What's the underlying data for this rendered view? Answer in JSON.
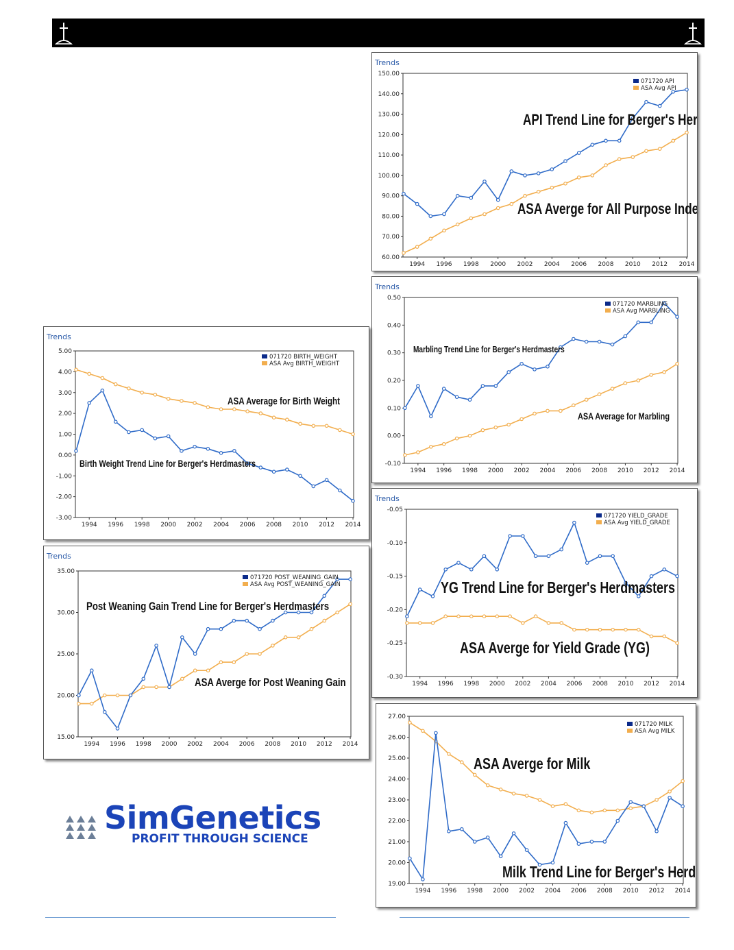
{
  "chart_data": [
    {
      "id": "api",
      "type": "line",
      "title": "Trends",
      "x": [
        1993,
        1994,
        1995,
        1996,
        1997,
        1998,
        1999,
        2000,
        2001,
        2002,
        2003,
        2004,
        2005,
        2006,
        2007,
        2008,
        2009,
        2010,
        2011,
        2012,
        2013,
        2014
      ],
      "xticks": [
        "1994",
        "1996",
        "1998",
        "2000",
        "2002",
        "2004",
        "2006",
        "2008",
        "2010",
        "2012",
        "2014"
      ],
      "ylim": [
        60,
        150
      ],
      "yticks": [
        "60.00",
        "70.00",
        "80.00",
        "90.00",
        "100.00",
        "110.00",
        "120.00",
        "130.00",
        "140.00",
        "150.00"
      ],
      "series": [
        {
          "name": "071720 API",
          "color": "#2f6bc8",
          "values": [
            91,
            86,
            80,
            81,
            90,
            89,
            97,
            88,
            102,
            100,
            101,
            103,
            107,
            111,
            115,
            117,
            117,
            128,
            136,
            134,
            141,
            142
          ]
        },
        {
          "name": "ASA Avg API",
          "color": "#f2ae4e",
          "values": [
            62,
            65,
            69,
            73,
            76,
            79,
            81,
            84,
            86,
            90,
            92,
            94,
            96,
            99,
            100,
            105,
            108,
            109,
            112,
            113,
            117,
            121
          ]
        }
      ],
      "annotations": [
        "API Trend Line for Berger's Herdmasters",
        "ASA Averge for All Purpose Index (API)"
      ]
    },
    {
      "id": "birth_weight",
      "type": "line",
      "title": "Trends",
      "x": [
        1993,
        1994,
        1995,
        1996,
        1997,
        1998,
        1999,
        2000,
        2001,
        2002,
        2003,
        2004,
        2005,
        2006,
        2007,
        2008,
        2009,
        2010,
        2011,
        2012,
        2013,
        2014
      ],
      "xticks": [
        "1994",
        "1996",
        "1998",
        "2000",
        "2002",
        "2004",
        "2006",
        "2008",
        "2010",
        "2012",
        "2014"
      ],
      "ylim": [
        -3,
        5
      ],
      "yticks": [
        "-3.00",
        "-2.00",
        "-1.00",
        "0.00",
        "1.00",
        "2.00",
        "3.00",
        "4.00",
        "5.00"
      ],
      "series": [
        {
          "name": "071720 BIRTH_WEIGHT",
          "color": "#2f6bc8",
          "values": [
            0.2,
            2.5,
            3.1,
            1.6,
            1.1,
            1.2,
            0.8,
            0.9,
            0.2,
            0.4,
            0.3,
            0.1,
            0.2,
            -0.4,
            -0.6,
            -0.8,
            -0.7,
            -1.0,
            -1.5,
            -1.2,
            -1.7,
            -2.2
          ]
        },
        {
          "name": "ASA Avg BIRTH_WEIGHT",
          "color": "#f2ae4e",
          "values": [
            4.1,
            3.9,
            3.7,
            3.4,
            3.2,
            3.0,
            2.9,
            2.7,
            2.6,
            2.5,
            2.3,
            2.2,
            2.2,
            2.1,
            2.0,
            1.8,
            1.7,
            1.5,
            1.4,
            1.4,
            1.2,
            1.0
          ]
        }
      ],
      "annotations": [
        "ASA Average for Birth Weight",
        "Birth Weight Trend Line for Berger's Herdmasters"
      ]
    },
    {
      "id": "marbling",
      "type": "line",
      "title": "Trends",
      "x": [
        1993,
        1994,
        1995,
        1996,
        1997,
        1998,
        1999,
        2000,
        2001,
        2002,
        2003,
        2004,
        2005,
        2006,
        2007,
        2008,
        2009,
        2010,
        2011,
        2012,
        2013,
        2014
      ],
      "xticks": [
        "1994",
        "1996",
        "1998",
        "2000",
        "2002",
        "2004",
        "2006",
        "2008",
        "2010",
        "2012",
        "2014"
      ],
      "ylim": [
        -0.1,
        0.5
      ],
      "yticks": [
        "-0.10",
        "0.00",
        "0.10",
        "0.20",
        "0.30",
        "0.40",
        "0.50"
      ],
      "series": [
        {
          "name": "071720 MARBLING",
          "color": "#2f6bc8",
          "values": [
            0.1,
            0.18,
            0.07,
            0.17,
            0.14,
            0.13,
            0.18,
            0.18,
            0.23,
            0.26,
            0.24,
            0.25,
            0.32,
            0.35,
            0.34,
            0.34,
            0.33,
            0.36,
            0.41,
            0.41,
            0.48,
            0.43
          ]
        },
        {
          "name": "ASA Avg MARBLING",
          "color": "#f2ae4e",
          "values": [
            -0.07,
            -0.06,
            -0.04,
            -0.03,
            -0.01,
            0.0,
            0.02,
            0.03,
            0.04,
            0.06,
            0.08,
            0.09,
            0.09,
            0.11,
            0.13,
            0.15,
            0.17,
            0.19,
            0.2,
            0.22,
            0.23,
            0.26
          ]
        }
      ],
      "annotations": [
        "Marbling Trend Line for Berger's Herdmasters",
        "ASA Average for Marbling"
      ]
    },
    {
      "id": "post_weaning_gain",
      "type": "line",
      "title": "Trends",
      "x": [
        1993,
        1994,
        1995,
        1996,
        1997,
        1998,
        1999,
        2000,
        2001,
        2002,
        2003,
        2004,
        2005,
        2006,
        2007,
        2008,
        2009,
        2010,
        2011,
        2012,
        2013,
        2014
      ],
      "xticks": [
        "1994",
        "1996",
        "1998",
        "2000",
        "2002",
        "2004",
        "2006",
        "2008",
        "2010",
        "2012",
        "2014"
      ],
      "ylim": [
        15,
        35
      ],
      "yticks": [
        "15.00",
        "20.00",
        "25.00",
        "30.00",
        "35.00"
      ],
      "series": [
        {
          "name": "071720 POST_WEANING_GAIN",
          "color": "#2f6bc8",
          "values": [
            20,
            23,
            18,
            16,
            20,
            22,
            26,
            21,
            27,
            25,
            28,
            28,
            29,
            29,
            28,
            29,
            30,
            30,
            30,
            32,
            34,
            34
          ]
        },
        {
          "name": "ASA Avg POST_WEANING_GAIN",
          "color": "#f2ae4e",
          "values": [
            19,
            19,
            20,
            20,
            20,
            21,
            21,
            21,
            22,
            23,
            23,
            24,
            24,
            25,
            25,
            26,
            27,
            27,
            28,
            29,
            30,
            31
          ]
        }
      ],
      "annotations": [
        "Post Weaning Gain Trend Line for Berger's Herdmasters",
        "ASA Averge for Post Weaning Gain"
      ]
    },
    {
      "id": "yield_grade",
      "type": "line",
      "title": "Trends",
      "x": [
        1993,
        1994,
        1995,
        1996,
        1997,
        1998,
        1999,
        2000,
        2001,
        2002,
        2003,
        2004,
        2005,
        2006,
        2007,
        2008,
        2009,
        2010,
        2011,
        2012,
        2013,
        2014
      ],
      "xticks": [
        "1994",
        "1996",
        "1998",
        "2000",
        "2002",
        "2004",
        "2006",
        "2008",
        "2010",
        "2012",
        "2014"
      ],
      "ylim": [
        -0.3,
        -0.05
      ],
      "yticks": [
        "-0.30",
        "-0.25",
        "-0.20",
        "-0.15",
        "-0.10",
        "-0.05"
      ],
      "series": [
        {
          "name": "071720 YIELD_GRADE",
          "color": "#2f6bc8",
          "values": [
            -0.21,
            -0.17,
            -0.18,
            -0.14,
            -0.13,
            -0.14,
            -0.12,
            -0.14,
            -0.09,
            -0.09,
            -0.12,
            -0.12,
            -0.11,
            -0.07,
            -0.13,
            -0.12,
            -0.12,
            -0.16,
            -0.18,
            -0.15,
            -0.14,
            -0.15
          ]
        },
        {
          "name": "ASA Avg YIELD_GRADE",
          "color": "#f2ae4e",
          "values": [
            -0.22,
            -0.22,
            -0.22,
            -0.21,
            -0.21,
            -0.21,
            -0.21,
            -0.21,
            -0.21,
            -0.22,
            -0.21,
            -0.22,
            -0.22,
            -0.23,
            -0.23,
            -0.23,
            -0.23,
            -0.23,
            -0.23,
            -0.24,
            -0.24,
            -0.25
          ]
        }
      ],
      "annotations": [
        "YG Trend Line for Berger's Herdmasters",
        "ASA Averge for Yield Grade (YG)"
      ]
    },
    {
      "id": "milk",
      "type": "line",
      "title": "",
      "x": [
        1993,
        1994,
        1995,
        1996,
        1997,
        1998,
        1999,
        2000,
        2001,
        2002,
        2003,
        2004,
        2005,
        2006,
        2007,
        2008,
        2009,
        2010,
        2011,
        2012,
        2013,
        2014
      ],
      "xticks": [
        "1994",
        "1996",
        "1998",
        "2000",
        "2002",
        "2004",
        "2006",
        "2008",
        "2010",
        "2012",
        "2014"
      ],
      "ylim": [
        19,
        27
      ],
      "yticks": [
        "19.00",
        "20.00",
        "21.00",
        "22.00",
        "23.00",
        "24.00",
        "25.00",
        "26.00",
        "27.00"
      ],
      "series": [
        {
          "name": "071720 MILK",
          "color": "#2f6bc8",
          "values": [
            20.2,
            19.2,
            26.2,
            21.5,
            21.6,
            21.0,
            21.2,
            20.3,
            21.4,
            20.6,
            19.9,
            20.0,
            21.9,
            20.9,
            21.0,
            21.0,
            22.0,
            22.9,
            22.7,
            21.5,
            23.1,
            22.7
          ]
        },
        {
          "name": "ASA Avg MILK",
          "color": "#f2ae4e",
          "values": [
            26.7,
            26.3,
            25.8,
            25.2,
            24.8,
            24.2,
            23.7,
            23.5,
            23.3,
            23.2,
            23.0,
            22.7,
            22.8,
            22.5,
            22.4,
            22.5,
            22.5,
            22.6,
            22.7,
            23.0,
            23.4,
            23.9
          ]
        }
      ],
      "annotations": [
        "ASA Averge for Milk",
        "Milk Trend Line for Berger's Herdmasters"
      ]
    }
  ],
  "logo": {
    "name": "SimGenetics",
    "tagline": "PROFIT THROUGH SCIENCE",
    "colors": {
      "primary": "#1b44b8",
      "mark": "#6c7f98"
    }
  },
  "header": {
    "icon": "cross-icon",
    "color": "#000000"
  }
}
